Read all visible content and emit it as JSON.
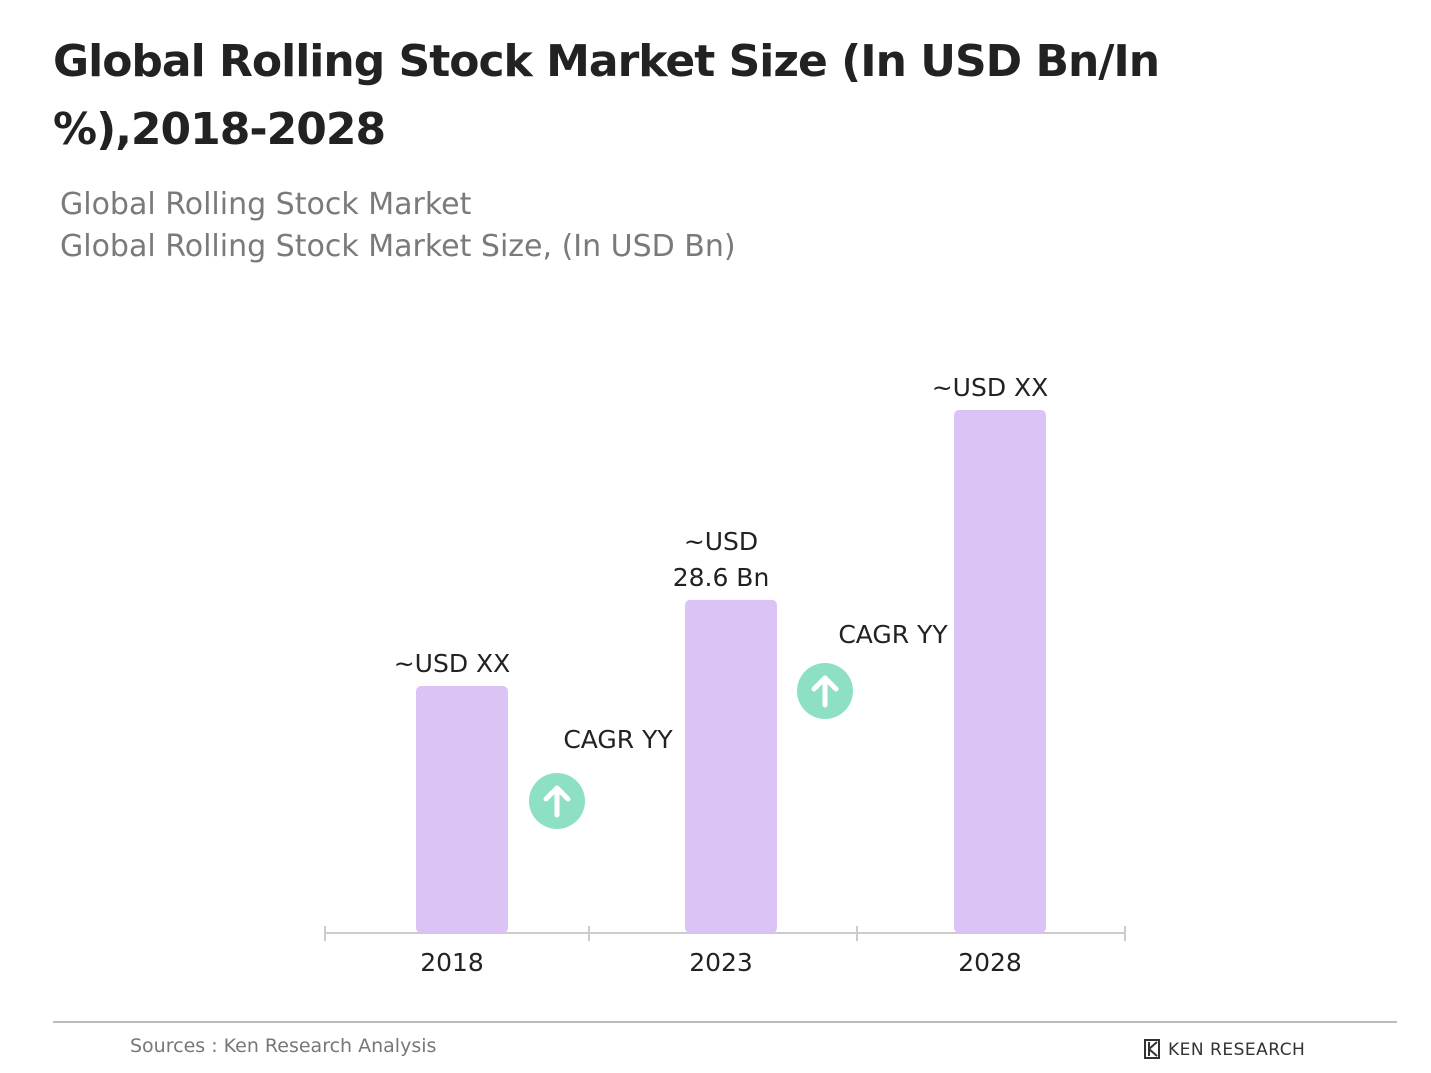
{
  "chart_data": {
    "type": "bar",
    "title": "Global Rolling Stock Market Size (In USD Bn/In %),2018-2028",
    "subtitle": [
      "Global Rolling Stock Market",
      "Global Rolling Stock Market Size, (In USD Bn)"
    ],
    "categories": [
      "2018",
      "2023",
      "2028"
    ],
    "values": [
      21.2,
      28.6,
      44.9
    ],
    "value_labels": [
      "~USD XX",
      "~USD 28.6 Bn",
      "~USD XX"
    ],
    "color": "#dcc3f6",
    "annotations": [
      "CAGR YY",
      "CAGR YY"
    ],
    "source": "Sources : Ken Research Analysis",
    "brand": "KEN RESEARCH"
  }
}
